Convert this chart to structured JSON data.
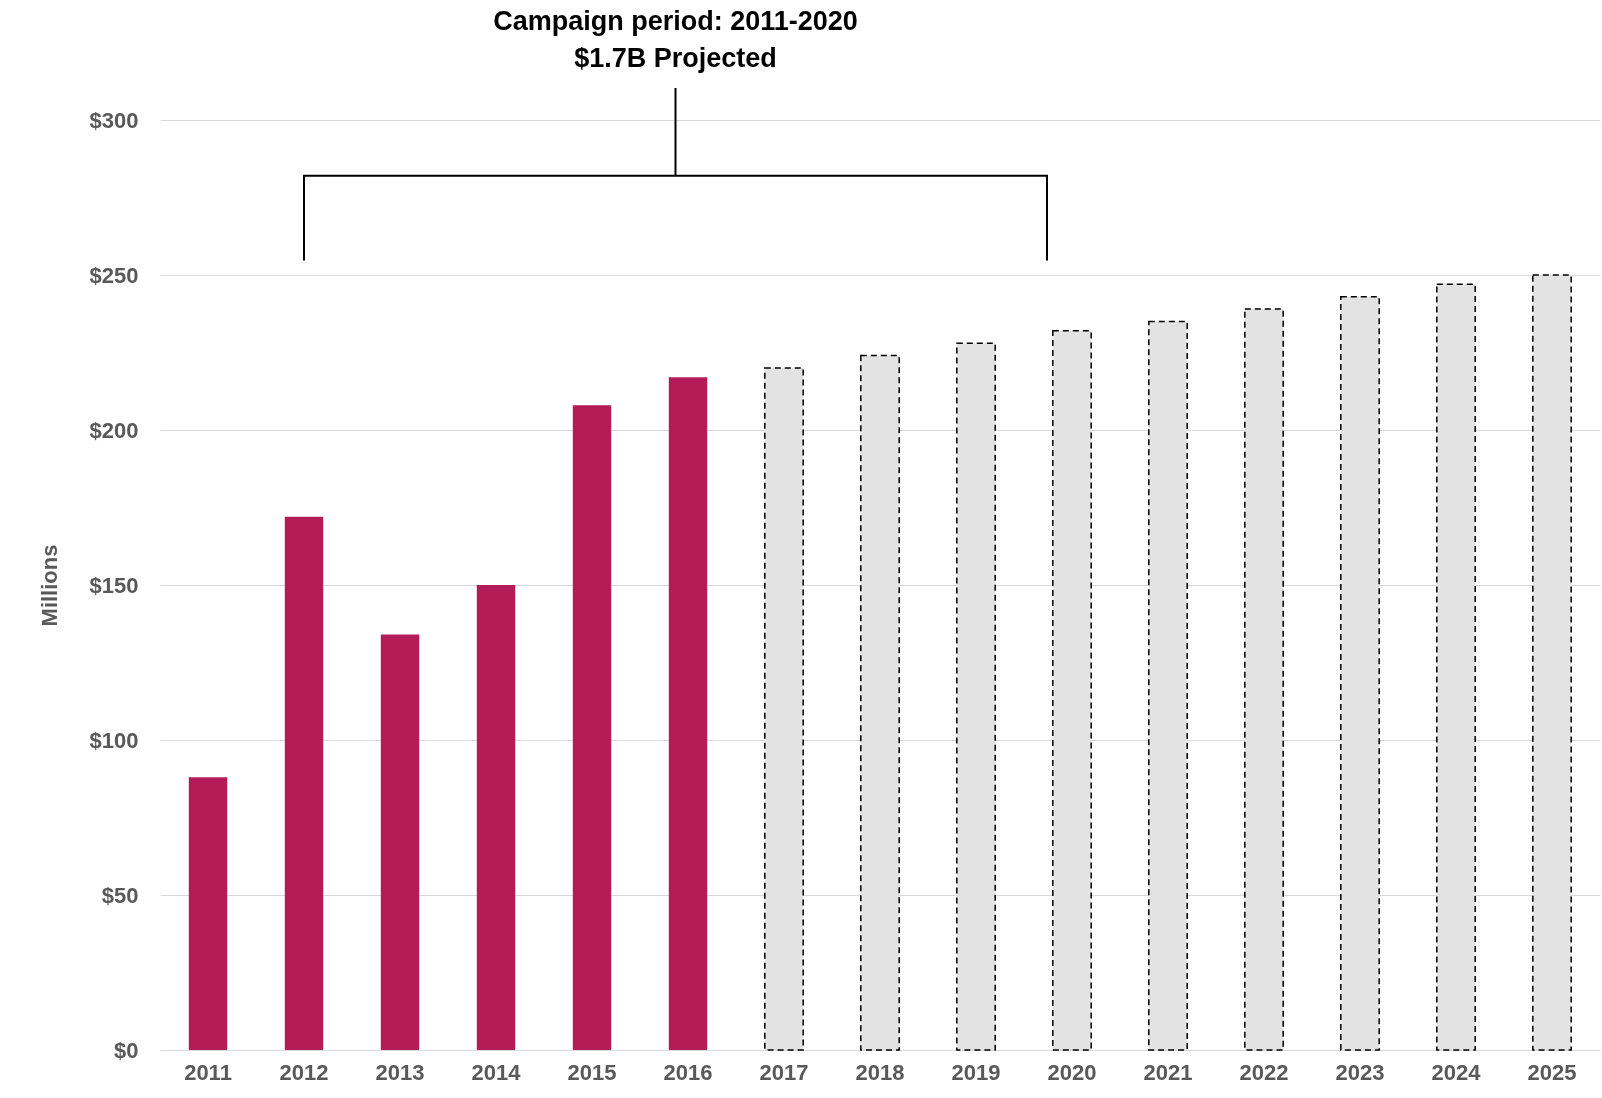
{
  "chart_data": {
    "type": "bar",
    "ylabel": "Millions",
    "categories": [
      "2011",
      "2012",
      "2013",
      "2014",
      "2015",
      "2016",
      "2017",
      "2018",
      "2019",
      "2020",
      "2021",
      "2022",
      "2023",
      "2024",
      "2025"
    ],
    "series": [
      {
        "color": "#b41c58",
        "values": [
          88,
          172,
          134,
          150,
          208,
          217,
          null,
          null,
          null,
          null,
          null,
          null,
          null,
          null,
          null
        ]
      },
      {
        "color": "#e3e3e3",
        "line_style": "dashed",
        "values": [
          null,
          null,
          null,
          null,
          null,
          null,
          220,
          224,
          228,
          232,
          235,
          239,
          243,
          247,
          250
        ]
      }
    ],
    "ylim": [
      0,
      300
    ],
    "yticks": [
      {
        "value": 0,
        "label": "$0"
      },
      {
        "value": 50,
        "label": "$50"
      },
      {
        "value": 100,
        "label": "$100"
      },
      {
        "value": 150,
        "label": "$150"
      },
      {
        "value": 200,
        "label": "$200"
      },
      {
        "value": 250,
        "label": "$250"
      },
      {
        "value": 300,
        "label": "$300"
      }
    ],
    "grid": "y",
    "annotations": [
      "Campaign period: 2011-2020",
      "$1.7B Projected"
    ]
  }
}
